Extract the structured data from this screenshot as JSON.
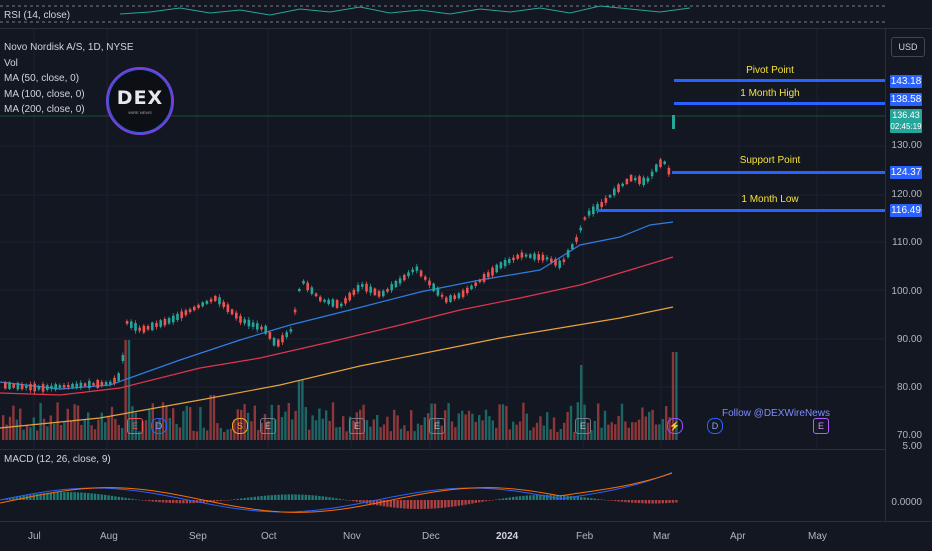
{
  "rsi_label": "RSI (14, close)",
  "legend": {
    "symbol": "Novo Nordisk A/S, 1D, NYSE",
    "vol": "Vol",
    "ma50": "MA (50, close, 0)",
    "ma100": "MA (100, close, 0)",
    "ma200": "MA (200, close, 0)"
  },
  "logo": {
    "text": "DEX",
    "sub": "WIRE NEWS"
  },
  "currency": "USD",
  "price_axis": [
    "130.00",
    "120.00",
    "110.00",
    "100.00",
    "90.00",
    "80.00",
    "70.00"
  ],
  "levels": [
    {
      "name": "Pivot Point",
      "value": "143.18"
    },
    {
      "name": "1 Month High",
      "value": "138.58"
    },
    {
      "name": "Support Point",
      "value": "124.37"
    },
    {
      "name": "1 Month Low",
      "value": "116.49"
    }
  ],
  "last_price": {
    "value": "136.43",
    "countdown": "02:45:19"
  },
  "follow_text": "Follow @DEXWireNews",
  "macd": {
    "label": "MACD (12, 26, close, 9)",
    "ticks": [
      "5.00",
      "0.0000"
    ]
  },
  "time_axis": [
    "Jul",
    "Aug",
    "Sep",
    "Oct",
    "Nov",
    "Dec",
    "2024",
    "Feb",
    "Mar",
    "Apr",
    "May"
  ],
  "colors": {
    "up": "#26a69a",
    "down": "#ef5350",
    "level": "#2962ff",
    "label_text": "#f5e33b",
    "ma50": "#2f7de1",
    "ma100": "#e0364d",
    "ma200": "#e8a23c"
  }
}
